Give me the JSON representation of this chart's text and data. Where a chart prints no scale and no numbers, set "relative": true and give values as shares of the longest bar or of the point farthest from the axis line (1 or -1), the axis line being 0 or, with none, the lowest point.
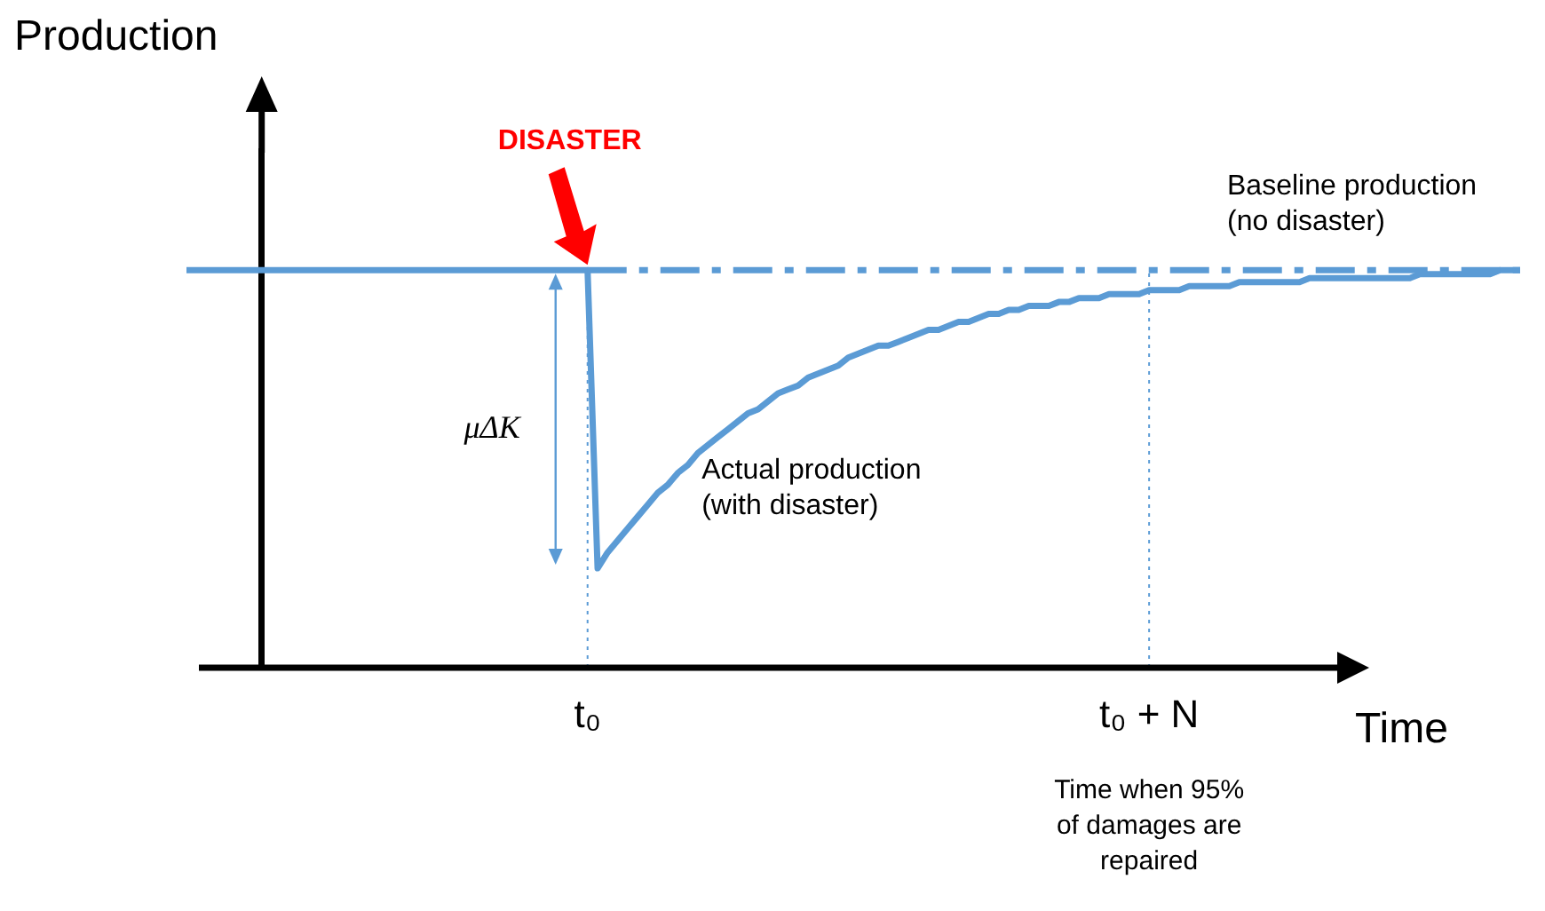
{
  "chart_data": {
    "type": "line",
    "relative": true,
    "xlabel": "Time",
    "ylabel": "Production",
    "grid": false,
    "legend": false,
    "marker": "none",
    "categories": [
      null,
      null,
      null,
      null,
      null,
      null,
      null,
      null,
      null,
      null,
      null,
      null,
      null,
      null,
      null,
      null,
      null,
      null,
      null,
      null,
      null,
      null,
      null,
      null,
      null,
      null,
      null,
      null,
      null,
      null,
      null,
      null,
      null,
      null,
      null,
      null,
      null,
      null,
      null,
      null,
      "t₀",
      null,
      null,
      null,
      null,
      null,
      null,
      null,
      null,
      null,
      null,
      null,
      null,
      null,
      null,
      null,
      null,
      null,
      null,
      null,
      null,
      null,
      null,
      null,
      null,
      null,
      null,
      null,
      null,
      null,
      null,
      null,
      null,
      null,
      null,
      null,
      null,
      null,
      null,
      null,
      null,
      null,
      null,
      null,
      null,
      null,
      null,
      null,
      null,
      null,
      null,
      null,
      null,
      null,
      null,
      null,
      "t₀ + N",
      null,
      null,
      null,
      null,
      null,
      null,
      null,
      null,
      null,
      null,
      null,
      null,
      null,
      null,
      null,
      null,
      null,
      null,
      null,
      null,
      null,
      null,
      null,
      null,
      null,
      null,
      null,
      null,
      null,
      null,
      null,
      null,
      null,
      null,
      null,
      null,
      null
    ],
    "series": [
      {
        "name": "Baseline production (no disaster)",
        "color": "#5b9bd5",
        "line_style": "dashed",
        "values": [
          null,
          null,
          null,
          null,
          null,
          null,
          null,
          null,
          null,
          null,
          null,
          null,
          null,
          null,
          null,
          null,
          null,
          null,
          null,
          null,
          null,
          null,
          null,
          null,
          null,
          null,
          null,
          null,
          null,
          null,
          null,
          null,
          null,
          null,
          null,
          null,
          null,
          null,
          null,
          null,
          1,
          1,
          1,
          1,
          1,
          1,
          1,
          1,
          1,
          1,
          1,
          1,
          1,
          1,
          1,
          1,
          1,
          1,
          1,
          1,
          1,
          1,
          1,
          1,
          1,
          1,
          1,
          1,
          1,
          1,
          1,
          1,
          1,
          1,
          1,
          1,
          1,
          1,
          1,
          1,
          1,
          1,
          1,
          1,
          1,
          1,
          1,
          1,
          1,
          1,
          1,
          1,
          1,
          1,
          1,
          1,
          1,
          1,
          1,
          1,
          1,
          1,
          1,
          1,
          1,
          1,
          1,
          1,
          1,
          1,
          1,
          1,
          1,
          1,
          1,
          1,
          1,
          1,
          1,
          1,
          1,
          1,
          1,
          1,
          1,
          1,
          1,
          1,
          1,
          1,
          1,
          1,
          1,
          1
        ]
      },
      {
        "name": "Actual production (with disaster)",
        "color": "#5b9bd5",
        "line_style": "solid",
        "values": [
          1,
          1,
          1,
          1,
          1,
          1,
          1,
          1,
          1,
          1,
          1,
          1,
          1,
          1,
          1,
          1,
          1,
          1,
          1,
          1,
          1,
          1,
          1,
          1,
          1,
          1,
          1,
          1,
          1,
          1,
          1,
          1,
          1,
          1,
          1,
          1,
          1,
          1,
          1,
          1,
          1,
          0.25,
          0.29,
          0.32,
          0.35,
          0.38,
          0.41,
          0.44,
          0.46,
          0.49,
          0.51,
          0.54,
          0.56,
          0.58,
          0.6,
          0.62,
          0.64,
          0.65,
          0.67,
          0.69,
          0.7,
          0.71,
          0.73,
          0.74,
          0.75,
          0.76,
          0.78,
          0.79,
          0.8,
          0.81,
          0.81,
          0.82,
          0.83,
          0.84,
          0.85,
          0.85,
          0.86,
          0.87,
          0.87,
          0.88,
          0.89,
          0.89,
          0.9,
          0.9,
          0.91,
          0.91,
          0.91,
          0.92,
          0.92,
          0.93,
          0.93,
          0.93,
          0.94,
          0.94,
          0.94,
          0.94,
          0.95,
          0.95,
          0.95,
          0.95,
          0.96,
          0.96,
          0.96,
          0.96,
          0.96,
          0.97,
          0.97,
          0.97,
          0.97,
          0.97,
          0.97,
          0.97,
          0.98,
          0.98,
          0.98,
          0.98,
          0.98,
          0.98,
          0.98,
          0.98,
          0.98,
          0.98,
          0.98,
          0.99,
          0.99,
          0.99,
          0.99,
          0.99,
          0.99,
          0.99,
          0.99,
          1,
          1,
          1
        ]
      }
    ],
    "ref_lines": [
      {
        "axis": "x",
        "value": "t₀",
        "line_style": "dotted",
        "color": "#5b9bd5"
      },
      {
        "axis": "x",
        "value": "t₀ + N",
        "line_style": "dotted",
        "color": "#5b9bd5"
      }
    ],
    "annotations": [
      "DISASTER",
      {
        "text": "μΔK",
        "x": "t₀",
        "y": 0.6
      },
      "Time when 95% of damages are repaired"
    ]
  }
}
